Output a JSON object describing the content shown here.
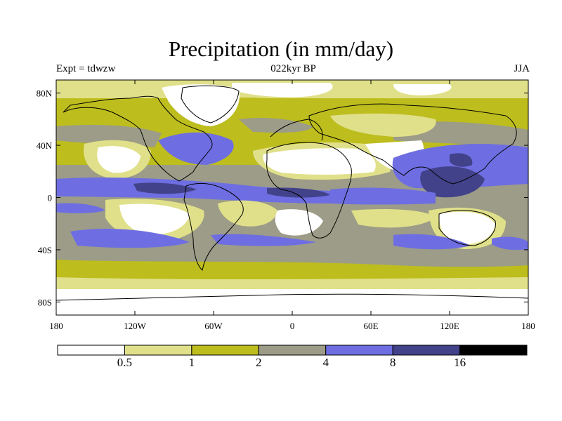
{
  "title": "Precipitation (in mm/day)",
  "experiment": "Expt = tdwzw",
  "period": "022kyr BP",
  "season": "JJA",
  "map": {
    "lon_range": [
      -180,
      180
    ],
    "lat_range": [
      -90,
      90
    ],
    "lat_ticks": [
      {
        "value": 80,
        "label": "80N"
      },
      {
        "value": 40,
        "label": "40N"
      },
      {
        "value": 0,
        "label": "0"
      },
      {
        "value": -40,
        "label": "40S"
      },
      {
        "value": -80,
        "label": "80S"
      }
    ],
    "lon_ticks": [
      {
        "value": -180,
        "label": "180"
      },
      {
        "value": -120,
        "label": "120W"
      },
      {
        "value": -60,
        "label": "60W"
      },
      {
        "value": 0,
        "label": "0"
      },
      {
        "value": 60,
        "label": "60E"
      },
      {
        "value": 120,
        "label": "120E"
      },
      {
        "value": 180,
        "label": "180"
      }
    ]
  },
  "colorbar": {
    "colors": [
      "#ffffff",
      "#e0e08a",
      "#bdbd1e",
      "#9c9c88",
      "#6e6ee2",
      "#42428a",
      "#000000"
    ],
    "labels": [
      "0.5",
      "1",
      "2",
      "4",
      "8",
      "16"
    ]
  }
}
